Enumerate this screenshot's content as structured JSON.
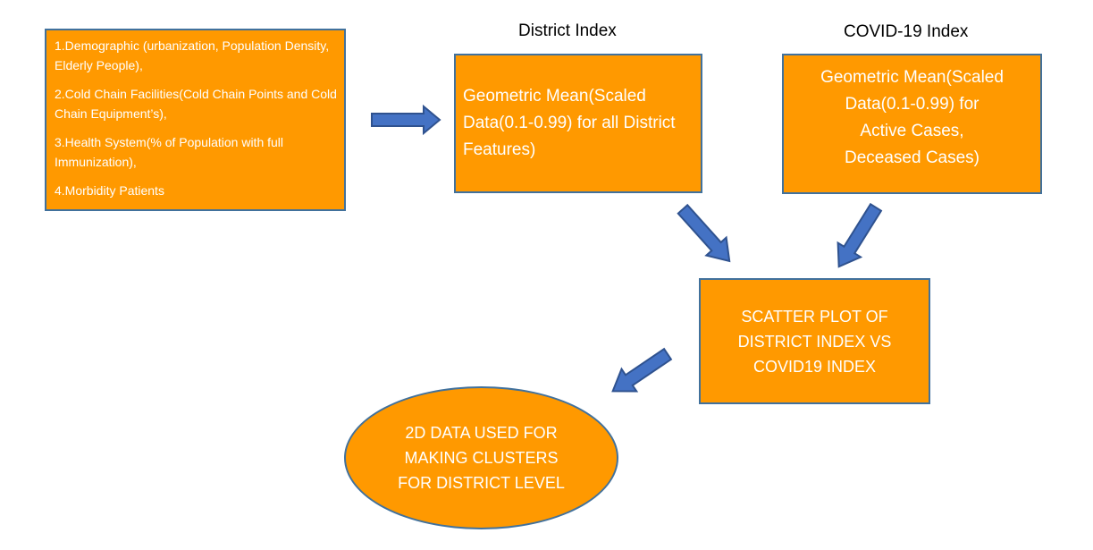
{
  "inputs_box": {
    "items": [
      "1.Demographic (urbanization, Population Density, Elderly People),",
      "2.Cold Chain Facilities(Cold Chain Points and Cold Chain Equipment’s),",
      "3.Health System(% of Population with full Immunization),",
      "4.Morbidity Patients"
    ]
  },
  "district_index": {
    "heading": "District Index",
    "text": "Geometric Mean(Scaled Data(0.1-0.99) for all District Features)"
  },
  "covid_index": {
    "heading": "COVID-19 Index",
    "text": "Geometric Mean(Scaled\nData(0.1-0.99) for\nActive Cases,\nDeceased Cases)"
  },
  "scatter_plot": {
    "text": "SCATTER PLOT OF\nDISTRICT INDEX VS\nCOVID19 INDEX"
  },
  "clusters": {
    "text": "2D DATA USED FOR\nMAKING CLUSTERS\nFOR DISTRICT LEVEL"
  },
  "colors": {
    "box_fill": "#FF9900",
    "box_border": "#41719C",
    "arrow_fill": "#4472C4",
    "arrow_border": "#2F528F"
  }
}
